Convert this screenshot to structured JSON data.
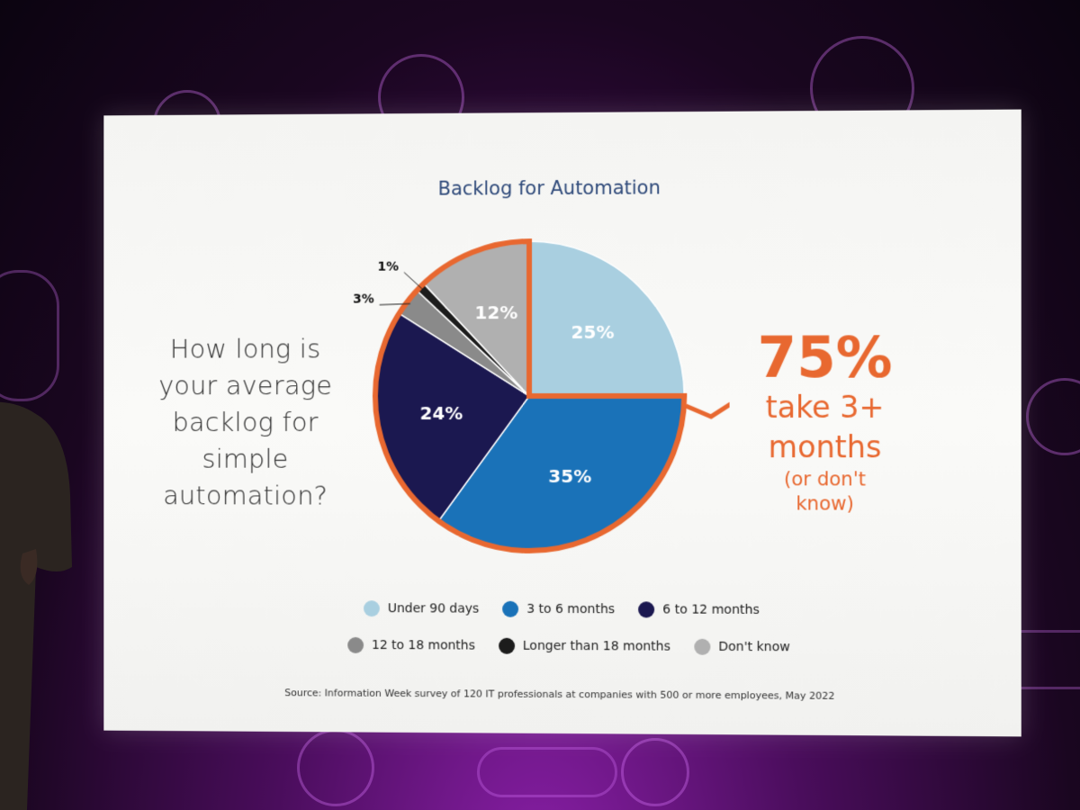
{
  "slide": {
    "question_lines": [
      "How long is",
      "your average",
      "backlog for",
      "simple",
      "automation?"
    ],
    "callout": {
      "big": "75%",
      "line1": "take 3+",
      "line2": "months",
      "line3": "(or don't",
      "line4": "know)",
      "color": "#e86830"
    },
    "source": "Source: Information Week survey of 120 IT professionals at companies with 500 or more employees, May 2022"
  },
  "chart_data": {
    "type": "pie",
    "title": "Backlog for Automation",
    "slices": [
      {
        "label": "Under 90 days",
        "value": 25,
        "text": "25%",
        "color": "#a9cfe0"
      },
      {
        "label": "3 to 6 months",
        "value": 35,
        "text": "35%",
        "color": "#1a72b8"
      },
      {
        "label": "6 to 12 months",
        "value": 24,
        "text": "24%",
        "color": "#1b1850"
      },
      {
        "label": "12 to 18 months",
        "value": 3,
        "text": "3%",
        "color": "#8a8a8a"
      },
      {
        "label": "Longer than 18 months",
        "value": 1,
        "text": "1%",
        "color": "#1c1c1c"
      },
      {
        "label": "Don't know",
        "value": 12,
        "text": "12%",
        "color": "#b0b0b0"
      }
    ],
    "highlight": [
      "3 to 6 months",
      "6 to 12 months",
      "12 to 18 months",
      "Longer than 18 months",
      "Don't know"
    ],
    "highlight_color": "#e86830",
    "legend_position": "bottom"
  }
}
